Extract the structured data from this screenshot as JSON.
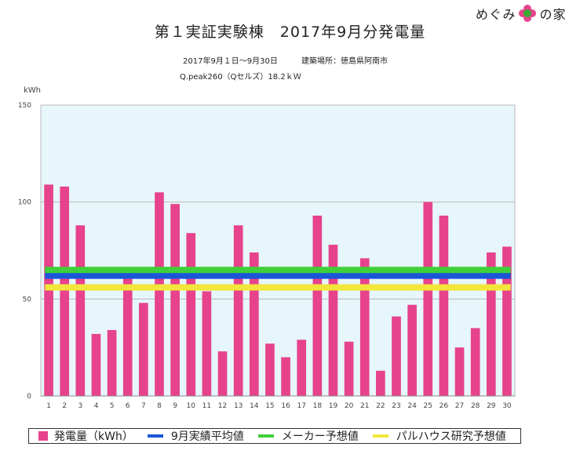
{
  "brand": {
    "text_left": "めぐみ",
    "text_right": "の家",
    "flower_icon": "flower-icon"
  },
  "header": {
    "title": "第１実証実験棟　2017年9月分発電量",
    "period": "2017年9月１日〜9月30日",
    "location": "建築場所：徳島県阿南市",
    "panel": "Q.peak260（Qセルズ）18.2ｋＷ"
  },
  "chart_data": {
    "type": "bar",
    "ylabel": "kWh",
    "ylim": [
      0,
      150
    ],
    "yticks": [
      0,
      50,
      100,
      150
    ],
    "grid": true,
    "plot_background": "#e7f6fb",
    "categories": [
      "1",
      "2",
      "3",
      "4",
      "5",
      "6",
      "7",
      "8",
      "9",
      "10",
      "11",
      "12",
      "13",
      "14",
      "15",
      "16",
      "17",
      "18",
      "19",
      "20",
      "21",
      "22",
      "23",
      "24",
      "25",
      "26",
      "27",
      "28",
      "29",
      "30"
    ],
    "series": [
      {
        "name": "発電量（kWh）",
        "color": "#e6438c",
        "values": [
          109,
          108,
          88,
          32,
          34,
          61,
          48,
          105,
          99,
          84,
          54,
          23,
          88,
          74,
          27,
          20,
          29,
          93,
          78,
          28,
          71,
          13,
          41,
          47,
          100,
          93,
          25,
          35,
          74,
          77
        ]
      }
    ],
    "reference_lines": [
      {
        "name": "9月実績平均値",
        "value": 62,
        "color": "#1a56d6"
      },
      {
        "name": "メーカー予想値",
        "value": 65,
        "color": "#3fcf3a"
      },
      {
        "name": "パルハウス研究予想値",
        "value": 56,
        "color": "#f2e63a"
      }
    ],
    "legend_position": "bottom"
  }
}
